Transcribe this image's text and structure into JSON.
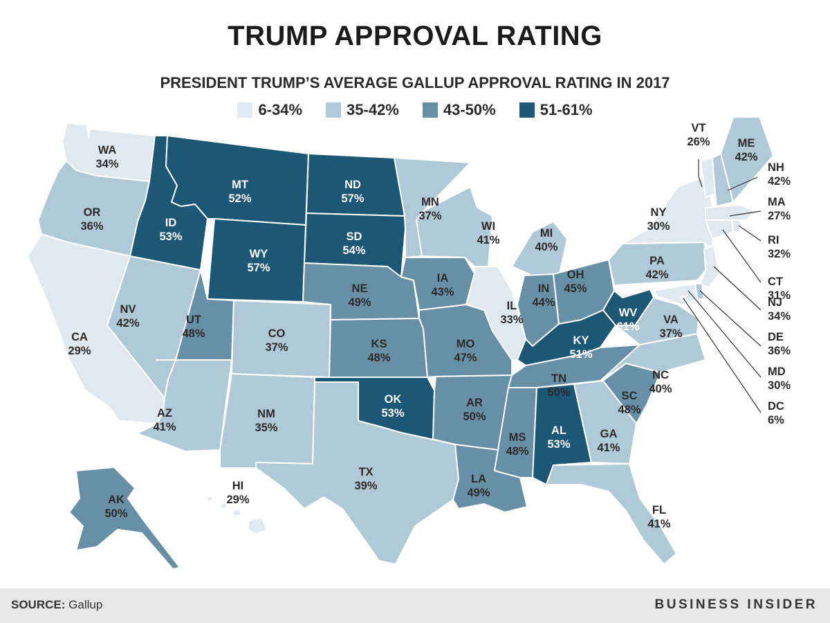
{
  "title": "TRUMP APPROVAL RATING",
  "subtitle": "PRESIDENT TRUMP’S AVERAGE GALLUP APPROVAL RATING IN 2017",
  "legend": [
    {
      "label": "6-34%",
      "color": "#dfe9ef"
    },
    {
      "label": "35-42%",
      "color": "#b0c9d6"
    },
    {
      "label": "43-50%",
      "color": "#6790a7"
    },
    {
      "label": "51-61%",
      "color": "#1c5776"
    }
  ],
  "states": [
    {
      "code": "WA",
      "value": 34,
      "text": "34%"
    },
    {
      "code": "OR",
      "value": 36,
      "text": "36%"
    },
    {
      "code": "CA",
      "value": 29,
      "text": "29%"
    },
    {
      "code": "ID",
      "value": 53,
      "text": "53%"
    },
    {
      "code": "NV",
      "value": 42,
      "text": "42%"
    },
    {
      "code": "MT",
      "value": 52,
      "text": "52%"
    },
    {
      "code": "WY",
      "value": 57,
      "text": "57%"
    },
    {
      "code": "UT",
      "value": 48,
      "text": "48%"
    },
    {
      "code": "AZ",
      "value": 41,
      "text": "41%"
    },
    {
      "code": "CO",
      "value": 37,
      "text": "37%"
    },
    {
      "code": "NM",
      "value": 35,
      "text": "35%"
    },
    {
      "code": "ND",
      "value": 57,
      "text": "57%"
    },
    {
      "code": "SD",
      "value": 54,
      "text": "54%"
    },
    {
      "code": "NE",
      "value": 49,
      "text": "49%"
    },
    {
      "code": "KS",
      "value": 48,
      "text": "48%"
    },
    {
      "code": "OK",
      "value": 53,
      "text": "53%"
    },
    {
      "code": "TX",
      "value": 39,
      "text": "39%"
    },
    {
      "code": "MN",
      "value": 37,
      "text": "37%"
    },
    {
      "code": "IA",
      "value": 43,
      "text": "43%"
    },
    {
      "code": "MO",
      "value": 47,
      "text": "47%"
    },
    {
      "code": "AR",
      "value": 50,
      "text": "50%"
    },
    {
      "code": "LA",
      "value": 49,
      "text": "49%"
    },
    {
      "code": "WI",
      "value": 41,
      "text": "41%"
    },
    {
      "code": "IL",
      "value": 33,
      "text": "33%"
    },
    {
      "code": "MI",
      "value": 40,
      "text": "40%"
    },
    {
      "code": "IN",
      "value": 44,
      "text": "44%"
    },
    {
      "code": "OH",
      "value": 45,
      "text": "45%"
    },
    {
      "code": "KY",
      "value": 51,
      "text": "51%"
    },
    {
      "code": "TN",
      "value": 50,
      "text": "50%"
    },
    {
      "code": "MS",
      "value": 48,
      "text": "48%"
    },
    {
      "code": "AL",
      "value": 53,
      "text": "53%"
    },
    {
      "code": "GA",
      "value": 41,
      "text": "41%"
    },
    {
      "code": "FL",
      "value": 41,
      "text": "41%"
    },
    {
      "code": "SC",
      "value": 48,
      "text": "48%"
    },
    {
      "code": "NC",
      "value": 40,
      "text": "40%"
    },
    {
      "code": "VA",
      "value": 37,
      "text": "37%"
    },
    {
      "code": "WV",
      "value": 61,
      "text": "61%"
    },
    {
      "code": "PA",
      "value": 42,
      "text": "42%"
    },
    {
      "code": "NY",
      "value": 30,
      "text": "30%"
    },
    {
      "code": "VT",
      "value": 26,
      "text": "26%"
    },
    {
      "code": "NH",
      "value": 42,
      "text": "42%"
    },
    {
      "code": "ME",
      "value": 42,
      "text": "42%"
    },
    {
      "code": "MA",
      "value": 27,
      "text": "27%"
    },
    {
      "code": "RI",
      "value": 32,
      "text": "32%"
    },
    {
      "code": "CT",
      "value": 31,
      "text": "31%"
    },
    {
      "code": "NJ",
      "value": 34,
      "text": "34%"
    },
    {
      "code": "DE",
      "value": 36,
      "text": "36%"
    },
    {
      "code": "MD",
      "value": 30,
      "text": "30%"
    },
    {
      "code": "DC",
      "value": 6,
      "text": "6%"
    },
    {
      "code": "AK",
      "value": 50,
      "text": "50%"
    },
    {
      "code": "HI",
      "value": 29,
      "text": "29%"
    }
  ],
  "footer": {
    "source_label": "SOURCE:",
    "source_value": "Gallup",
    "brand": "BUSINESS INSIDER"
  }
}
